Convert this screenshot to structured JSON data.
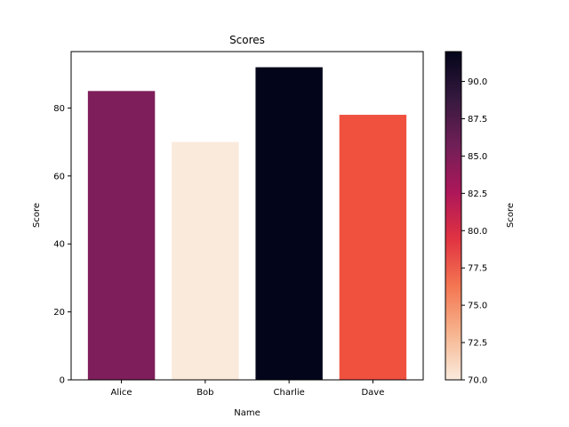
{
  "chart_data": {
    "type": "bar",
    "title": "Scores",
    "xlabel": "Name",
    "ylabel": "Score",
    "categories": [
      "Alice",
      "Bob",
      "Charlie",
      "Dave"
    ],
    "values": [
      85,
      70,
      92,
      78
    ],
    "bar_colors": [
      "#7e1e5a",
      "#faeadc",
      "#03051a",
      "#f0513f"
    ],
    "ylim": [
      0,
      96.6
    ],
    "yticks": [
      0,
      20,
      40,
      60,
      80
    ],
    "grid": false,
    "colorbar": {
      "label": "Score",
      "range": [
        70.0,
        92.0
      ],
      "ticks": [
        "70.0",
        "72.5",
        "75.0",
        "77.5",
        "80.0",
        "82.5",
        "85.0",
        "87.5",
        "90.0"
      ],
      "colormap_stops": [
        "#faebdd",
        "#f6b48e",
        "#f37651",
        "#e13342",
        "#ad1759",
        "#701f57",
        "#35193e",
        "#03051a"
      ]
    }
  }
}
